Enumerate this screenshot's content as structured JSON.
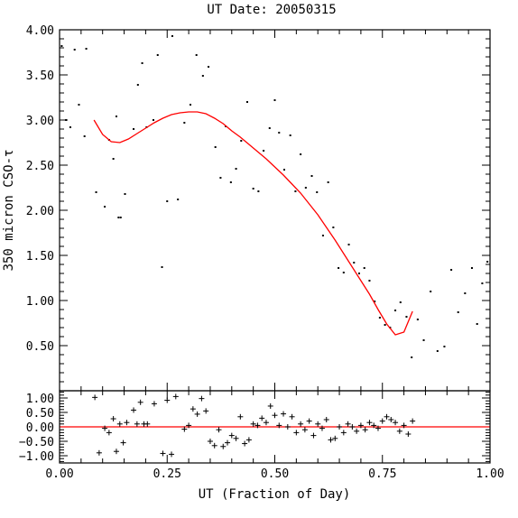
{
  "chart_data": [
    {
      "id": "main",
      "type": "scatter",
      "title": "UT Date: 20050315",
      "ylabel": "350 micron CSO-τ",
      "xlim": [
        0.0,
        1.0
      ],
      "ylim": [
        0.0,
        4.0
      ],
      "yticks": [
        "4.00",
        "3.50",
        "3.00",
        "2.50",
        "2.00",
        "1.50",
        "1.00",
        "0.50"
      ],
      "yticks_values": [
        4.0,
        3.5,
        3.0,
        2.5,
        2.0,
        1.5,
        1.0,
        0.5
      ],
      "series": [
        {
          "type": "scatter",
          "color": "#000000",
          "x": [
            0.005,
            0.015,
            0.025,
            0.035,
            0.045,
            0.058,
            0.062,
            0.085,
            0.105,
            0.115,
            0.125,
            0.132,
            0.137,
            0.142,
            0.152,
            0.172,
            0.182,
            0.192,
            0.202,
            0.218,
            0.228,
            0.238,
            0.25,
            0.262,
            0.275,
            0.29,
            0.304,
            0.318,
            0.333,
            0.346,
            0.362,
            0.374,
            0.386,
            0.398,
            0.41,
            0.422,
            0.436,
            0.45,
            0.462,
            0.474,
            0.488,
            0.5,
            0.51,
            0.522,
            0.536,
            0.548,
            0.56,
            0.572,
            0.586,
            0.598,
            0.612,
            0.624,
            0.636,
            0.648,
            0.66,
            0.672,
            0.684,
            0.696,
            0.708,
            0.72,
            0.732,
            0.744,
            0.756,
            0.768,
            0.78,
            0.792,
            0.806,
            0.818,
            0.832,
            0.846,
            0.862,
            0.878,
            0.894,
            0.91,
            0.926,
            0.942,
            0.958,
            0.97,
            0.982,
            0.994
          ],
          "y": [
            3.82,
            3.0,
            2.92,
            3.78,
            3.17,
            2.82,
            3.79,
            2.2,
            2.04,
            2.78,
            2.57,
            3.04,
            1.92,
            1.92,
            2.18,
            2.9,
            3.39,
            3.63,
            2.92,
            3.0,
            3.72,
            1.37,
            2.1,
            3.93,
            2.12,
            2.97,
            3.17,
            3.72,
            3.49,
            3.59,
            2.7,
            2.36,
            2.93,
            2.31,
            2.46,
            2.77,
            3.2,
            2.24,
            2.21,
            2.66,
            2.91,
            3.22,
            2.86,
            2.45,
            2.83,
            2.21,
            2.62,
            2.25,
            2.38,
            2.2,
            1.72,
            2.31,
            1.81,
            1.36,
            1.31,
            1.62,
            1.42,
            1.3,
            1.36,
            1.22,
            0.99,
            0.81,
            0.73,
            0.7,
            0.89,
            0.98,
            0.82,
            0.37,
            0.79,
            0.56,
            1.1,
            0.44,
            0.49,
            1.34,
            0.87,
            1.08,
            1.36,
            0.74,
            1.19,
            1.43
          ]
        },
        {
          "type": "line",
          "color": "#ff0000",
          "x": [
            0.08,
            0.1,
            0.12,
            0.14,
            0.16,
            0.18,
            0.2,
            0.22,
            0.24,
            0.26,
            0.28,
            0.3,
            0.32,
            0.34,
            0.36,
            0.38,
            0.4,
            0.42,
            0.44,
            0.46,
            0.48,
            0.5,
            0.52,
            0.54,
            0.56,
            0.58,
            0.6,
            0.62,
            0.64,
            0.66,
            0.68,
            0.7,
            0.72,
            0.74,
            0.76,
            0.78,
            0.8,
            0.82
          ],
          "y": [
            3.0,
            2.84,
            2.76,
            2.75,
            2.79,
            2.85,
            2.91,
            2.97,
            3.02,
            3.06,
            3.08,
            3.09,
            3.09,
            3.07,
            3.02,
            2.96,
            2.88,
            2.81,
            2.73,
            2.65,
            2.57,
            2.48,
            2.39,
            2.29,
            2.19,
            2.07,
            1.95,
            1.81,
            1.67,
            1.52,
            1.37,
            1.22,
            1.07,
            0.9,
            0.74,
            0.62,
            0.65,
            0.88
          ]
        }
      ]
    },
    {
      "id": "residuals",
      "type": "scatter",
      "xlabel": "UT (Fraction of Day)",
      "xlim": [
        0.0,
        1.0
      ],
      "ylim": [
        -1.25,
        1.25
      ],
      "xticks": [
        "0.00",
        "0.25",
        "0.50",
        "0.75",
        "1.00"
      ],
      "xticks_values": [
        0.0,
        0.25,
        0.5,
        0.75,
        1.0
      ],
      "yticks": [
        "1.00",
        "0.50",
        "0.00",
        "−0.50",
        "−1.00"
      ],
      "yticks_values": [
        1.0,
        0.5,
        0.0,
        -0.5,
        -1.0
      ],
      "series": [
        {
          "type": "scatter",
          "marker": "+",
          "color": "#000000",
          "x": [
            0.082,
            0.092,
            0.105,
            0.115,
            0.125,
            0.132,
            0.14,
            0.148,
            0.156,
            0.172,
            0.18,
            0.188,
            0.196,
            0.204,
            0.22,
            0.24,
            0.25,
            0.26,
            0.27,
            0.29,
            0.3,
            0.31,
            0.32,
            0.33,
            0.34,
            0.35,
            0.36,
            0.37,
            0.38,
            0.39,
            0.4,
            0.41,
            0.42,
            0.43,
            0.44,
            0.45,
            0.46,
            0.47,
            0.48,
            0.49,
            0.5,
            0.51,
            0.52,
            0.53,
            0.54,
            0.55,
            0.56,
            0.57,
            0.58,
            0.59,
            0.6,
            0.61,
            0.62,
            0.63,
            0.64,
            0.65,
            0.66,
            0.67,
            0.68,
            0.69,
            0.7,
            0.71,
            0.72,
            0.73,
            0.74,
            0.75,
            0.76,
            0.77,
            0.78,
            0.79,
            0.8,
            0.81,
            0.82
          ],
          "y": [
            1.02,
            -0.9,
            -0.05,
            -0.2,
            0.28,
            -0.85,
            0.1,
            -0.55,
            0.15,
            0.58,
            0.1,
            0.85,
            0.1,
            0.1,
            0.8,
            -0.92,
            0.92,
            -0.95,
            1.05,
            -0.08,
            0.05,
            0.62,
            0.44,
            0.98,
            0.55,
            -0.5,
            -0.65,
            -0.1,
            -0.68,
            -0.55,
            -0.3,
            -0.4,
            0.35,
            -0.58,
            -0.45,
            0.1,
            0.05,
            0.3,
            0.15,
            0.72,
            0.4,
            0.05,
            0.45,
            0.0,
            0.35,
            -0.2,
            0.1,
            -0.1,
            0.2,
            -0.3,
            0.1,
            -0.05,
            0.25,
            -0.45,
            -0.4,
            0.0,
            -0.2,
            0.1,
            0.0,
            -0.15,
            0.05,
            -0.1,
            0.15,
            0.05,
            -0.05,
            0.2,
            0.35,
            0.25,
            0.15,
            -0.15,
            0.05,
            -0.25,
            0.2
          ]
        },
        {
          "type": "line",
          "color": "#ff0000",
          "x": [
            0.0,
            1.0
          ],
          "y": [
            0.0,
            0.0
          ]
        }
      ]
    }
  ]
}
